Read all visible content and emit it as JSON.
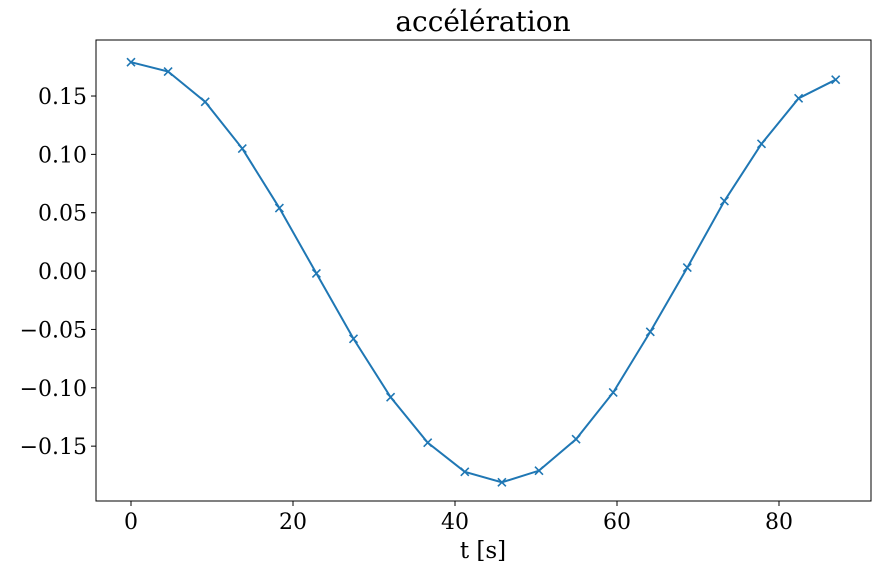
{
  "chart_data": {
    "type": "line",
    "title": "accélération",
    "xlabel": "t [s]",
    "x": [
      0,
      4.58,
      9.16,
      13.74,
      18.32,
      22.89,
      27.47,
      32.05,
      36.63,
      41.21,
      45.79,
      50.37,
      54.95,
      59.53,
      64.11,
      68.68,
      73.26,
      77.84,
      82.42,
      87.0
    ],
    "series": [
      {
        "color": "#1f77b4",
        "marker": "x",
        "values": [
          0.179,
          0.171,
          0.145,
          0.105,
          0.054,
          -0.002,
          -0.058,
          -0.108,
          -0.147,
          -0.172,
          -0.181,
          -0.171,
          -0.144,
          -0.104,
          -0.052,
          0.003,
          0.06,
          0.109,
          0.148,
          0.164
        ]
      }
    ],
    "xlim": [
      -4.32,
      91.36
    ],
    "xticks": [
      0,
      20,
      40,
      60,
      80
    ],
    "ylim": [
      -0.197,
      0.198
    ],
    "yticks": [
      {
        "value": -0.15,
        "label": "−0.15"
      },
      {
        "value": -0.1,
        "label": "−0.10"
      },
      {
        "value": -0.05,
        "label": "−0.05"
      },
      {
        "value": 0,
        "label": "0.00"
      },
      0.05,
      {
        "value": 0.1,
        "label": "0.10"
      },
      0.15
    ],
    "grid": false
  }
}
